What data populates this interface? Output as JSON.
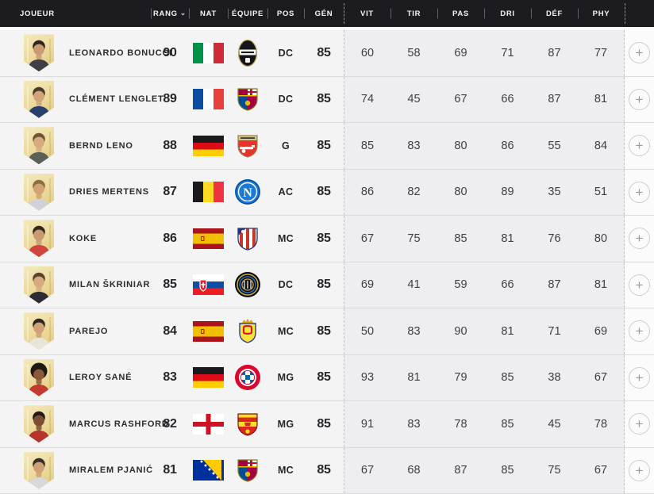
{
  "header": {
    "sort_indicator": "⌄",
    "columns": {
      "joueur": "JOUEUR",
      "rang": "RANG",
      "nat": "NAT",
      "equipe": "ÉQUIPE",
      "pos": "POS",
      "gen": "GÉN",
      "stats": [
        "VIT",
        "TIR",
        "PAS",
        "DRI",
        "DÉF",
        "PHY"
      ]
    }
  },
  "add_button_label": "+",
  "colors": {
    "header_bg": "#1c1c20",
    "row_bg": "#f4f4f5",
    "stats_bg": "#eeeef0",
    "page_bg": "#fbfbfb",
    "card_gold": "#ecd99a"
  },
  "players": [
    {
      "name": "LEONARDO BONUCCI",
      "rank": "90",
      "nat": "Italie",
      "flag": "it",
      "club": "Piemonte Calcio",
      "badge": "piemonte",
      "pos": "DC",
      "gen": "85",
      "stats": [
        "60",
        "58",
        "69",
        "71",
        "87",
        "77"
      ],
      "portrait": {
        "skin": "#c99b72",
        "hair": "#2e2620",
        "jersey": "#3f3f45",
        "afro": false
      }
    },
    {
      "name": "CLÉMENT LENGLET",
      "rank": "89",
      "nat": "France",
      "flag": "fr",
      "club": "FC Barcelone",
      "badge": "barcelona",
      "pos": "DC",
      "gen": "85",
      "stats": [
        "74",
        "45",
        "67",
        "66",
        "87",
        "81"
      ],
      "portrait": {
        "skin": "#d1a47c",
        "hair": "#4a3b2a",
        "jersey": "#27406e",
        "afro": false
      }
    },
    {
      "name": "BERND LENO",
      "rank": "88",
      "nat": "Allemagne",
      "flag": "de",
      "club": "Arsenal",
      "badge": "arsenal",
      "pos": "G",
      "gen": "85",
      "stats": [
        "85",
        "83",
        "80",
        "86",
        "55",
        "84"
      ],
      "portrait": {
        "skin": "#d6ab80",
        "hair": "#6d5633",
        "jersey": "#5a6058",
        "afro": false
      }
    },
    {
      "name": "DRIES MERTENS",
      "rank": "87",
      "nat": "Belgique",
      "flag": "be",
      "club": "Naples",
      "badge": "napoli",
      "pos": "AC",
      "gen": "85",
      "stats": [
        "86",
        "82",
        "80",
        "89",
        "35",
        "51"
      ],
      "portrait": {
        "skin": "#d2a376",
        "hair": "#8a6f45",
        "jersey": "#cfd3d6",
        "afro": false
      }
    },
    {
      "name": "KOKE",
      "rank": "86",
      "nat": "Espagne",
      "flag": "es",
      "club": "Atlético de Madrid",
      "badge": "atletico",
      "pos": "MC",
      "gen": "85",
      "stats": [
        "67",
        "75",
        "85",
        "81",
        "76",
        "80"
      ],
      "portrait": {
        "skin": "#c99b72",
        "hair": "#35291f",
        "jersey": "#d0463c",
        "afro": false
      }
    },
    {
      "name": "MILAN ŠKRINIAR",
      "rank": "85",
      "nat": "Slovaquie",
      "flag": "sk",
      "club": "Inter",
      "badge": "inter",
      "pos": "DC",
      "gen": "85",
      "stats": [
        "69",
        "41",
        "59",
        "66",
        "87",
        "81"
      ],
      "portrait": {
        "skin": "#d6ab80",
        "hair": "#5a452c",
        "jersey": "#2c2c34",
        "afro": false
      }
    },
    {
      "name": "PAREJO",
      "rank": "84",
      "nat": "Espagne",
      "flag": "es",
      "club": "Villarreal CF",
      "badge": "villarreal",
      "pos": "MC",
      "gen": "85",
      "stats": [
        "50",
        "83",
        "90",
        "81",
        "71",
        "69"
      ],
      "portrait": {
        "skin": "#cfa176",
        "hair": "#2e2620",
        "jersey": "#e8e4da",
        "afro": false
      }
    },
    {
      "name": "LEROY SANÉ",
      "rank": "83",
      "nat": "Allemagne",
      "flag": "de",
      "club": "FC Bayern München",
      "badge": "bayern",
      "pos": "MG",
      "gen": "85",
      "stats": [
        "93",
        "81",
        "79",
        "85",
        "38",
        "67"
      ],
      "portrait": {
        "skin": "#8a5a38",
        "hair": "#1f1813",
        "jersey": "#c23b2e",
        "afro": true
      }
    },
    {
      "name": "MARCUS RASHFORD",
      "rank": "82",
      "nat": "Angleterre",
      "flag": "en",
      "club": "Manchester United",
      "badge": "manutd",
      "pos": "MG",
      "gen": "85",
      "stats": [
        "91",
        "83",
        "78",
        "85",
        "45",
        "78"
      ],
      "portrait": {
        "skin": "#7c4f33",
        "hair": "#1f1813",
        "jersey": "#b7342c",
        "afro": false
      }
    },
    {
      "name": "MIRALEM PJANIĆ",
      "rank": "81",
      "nat": "Bosnie-Herzégovine",
      "flag": "ba",
      "club": "FC Barcelone",
      "badge": "barcelona",
      "pos": "MC",
      "gen": "85",
      "stats": [
        "67",
        "68",
        "87",
        "85",
        "75",
        "67"
      ],
      "portrait": {
        "skin": "#cfa176",
        "hair": "#3a2e22",
        "jersey": "#d8d8d8",
        "afro": false
      }
    }
  ]
}
